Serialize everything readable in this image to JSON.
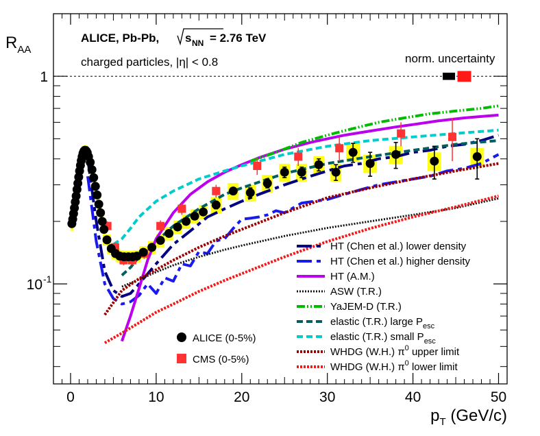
{
  "chart_data": {
    "type": "scatter",
    "title": "",
    "xlabel": "p_T (GeV/c)",
    "ylabel": "R_AA",
    "xlim": [
      -2,
      51
    ],
    "ylim": [
      0.033,
      2.0
    ],
    "yscale": "log",
    "x_ticks": [
      0,
      10,
      20,
      30,
      40,
      50
    ],
    "y_ticks": [
      {
        "value": 0.1,
        "label": "10",
        "exp": "-1"
      },
      {
        "value": 1.0,
        "label": "1",
        "exp": ""
      }
    ],
    "annotations": {
      "line1_prefix": "ALICE, Pb-Pb,",
      "sqrt": "s",
      "sqrt_sub": "NN",
      "line1_suffix": "= 2.76 TeV",
      "line2": "charged particles, |η| < 0.8",
      "norm": "norm. uncertainty"
    },
    "reference_line": 1.0,
    "norm_uncertainty": [
      {
        "name": "ALICE",
        "x": 44.2,
        "low": 0.96,
        "high": 1.04,
        "color": "#000000"
      },
      {
        "name": "CMS",
        "x": 46.0,
        "low": 0.94,
        "high": 1.06,
        "color": "#ff1a1a"
      }
    ],
    "series": [
      {
        "name": "ALICE (0-5%)",
        "marker": "circle",
        "color": "#000000",
        "x": [
          0.15,
          0.25,
          0.35,
          0.45,
          0.55,
          0.65,
          0.75,
          0.85,
          0.95,
          1.05,
          1.15,
          1.25,
          1.35,
          1.45,
          1.55,
          1.65,
          1.75,
          1.85,
          1.95,
          2.1,
          2.3,
          2.5,
          2.7,
          2.9,
          3.1,
          3.3,
          3.5,
          3.7,
          3.9,
          4.25,
          4.75,
          5.25,
          5.75,
          6.25,
          6.75,
          7.25,
          7.75,
          8.5,
          9.5,
          10.5,
          11.5,
          12.5,
          13.5,
          14.5,
          15.5,
          17.0,
          19.0,
          21.0,
          23.0,
          25.0,
          27.0,
          29.0,
          31.0,
          33.0,
          35.0,
          38.0,
          42.5,
          47.5
        ],
        "y": [
          0.195,
          0.205,
          0.218,
          0.232,
          0.248,
          0.265,
          0.285,
          0.305,
          0.327,
          0.35,
          0.372,
          0.392,
          0.41,
          0.425,
          0.435,
          0.44,
          0.44,
          0.436,
          0.428,
          0.41,
          0.385,
          0.355,
          0.325,
          0.295,
          0.268,
          0.242,
          0.22,
          0.2,
          0.183,
          0.163,
          0.148,
          0.14,
          0.136,
          0.135,
          0.135,
          0.135,
          0.136,
          0.142,
          0.15,
          0.162,
          0.175,
          0.188,
          0.2,
          0.212,
          0.222,
          0.24,
          0.28,
          0.275,
          0.305,
          0.345,
          0.345,
          0.375,
          0.345,
          0.43,
          0.38,
          0.42,
          0.39,
          0.41
        ],
        "stat_err": [
          0,
          0,
          0,
          0,
          0,
          0,
          0,
          0,
          0,
          0,
          0,
          0,
          0,
          0,
          0,
          0,
          0,
          0,
          0,
          0,
          0,
          0,
          0,
          0,
          0,
          0,
          0,
          0,
          0,
          0,
          0,
          0,
          0,
          0,
          0,
          0,
          0,
          0,
          0,
          0,
          0,
          0,
          0,
          0,
          0,
          0.01,
          0.01,
          0.015,
          0.015,
          0.02,
          0.02,
          0.025,
          0.03,
          0.045,
          0.05,
          0.06,
          0.07,
          0.09
        ],
        "sys_err": [
          0.015,
          0.015,
          0.015,
          0.016,
          0.017,
          0.018,
          0.019,
          0.02,
          0.021,
          0.022,
          0.023,
          0.024,
          0.025,
          0.025,
          0.025,
          0.025,
          0.025,
          0.025,
          0.025,
          0.024,
          0.022,
          0.02,
          0.018,
          0.016,
          0.015,
          0.014,
          0.013,
          0.012,
          0.011,
          0.01,
          0.009,
          0.009,
          0.009,
          0.009,
          0.009,
          0.009,
          0.009,
          0.01,
          0.011,
          0.012,
          0.013,
          0.014,
          0.016,
          0.017,
          0.018,
          0.022,
          0.026,
          0.026,
          0.03,
          0.034,
          0.034,
          0.037,
          0.034,
          0.043,
          0.038,
          0.042,
          0.04,
          0.042
        ]
      },
      {
        "name": "CMS (0-5%)",
        "marker": "square",
        "color": "#ff3333",
        "x": [
          4.3,
          5.2,
          6.2,
          7.2,
          8.6,
          10.5,
          13.0,
          17.0,
          21.8,
          26.6,
          31.4,
          38.6,
          44.6
        ],
        "y": [
          0.19,
          0.15,
          0.13,
          0.13,
          0.14,
          0.19,
          0.23,
          0.28,
          0.37,
          0.41,
          0.45,
          0.53,
          0.51
        ],
        "err": [
          0.01,
          0.008,
          0.007,
          0.007,
          0.008,
          0.012,
          0.015,
          0.02,
          0.035,
          0.04,
          0.06,
          0.07,
          0.12
        ]
      }
    ],
    "models": [
      {
        "name": "HT (Chen et al.) lower density",
        "color": "#000080",
        "dash": "22 7 6 7",
        "width": 4,
        "x": [
          2.0,
          3,
          4,
          5,
          6,
          7,
          8,
          10,
          12,
          14,
          16,
          18,
          20,
          22,
          25,
          28,
          30,
          32,
          34,
          36,
          38,
          40,
          42,
          44,
          46,
          48,
          50
        ],
        "y": [
          0.4,
          0.2,
          0.115,
          0.093,
          0.087,
          0.09,
          0.1,
          0.125,
          0.155,
          0.18,
          0.21,
          0.23,
          0.25,
          0.27,
          0.3,
          0.33,
          0.35,
          0.37,
          0.38,
          0.4,
          0.41,
          0.43,
          0.44,
          0.46,
          0.47,
          0.49,
          0.52
        ]
      },
      {
        "name": "HT (Chen et al.) higher density",
        "color": "#1a1aee",
        "dash": "22 7 6 7",
        "width": 4,
        "x": [
          2.0,
          3,
          4,
          5,
          6,
          7,
          8,
          9,
          10,
          11,
          12,
          13,
          14,
          15,
          16,
          17,
          18,
          19,
          20,
          21,
          22,
          23,
          24,
          25,
          27,
          30,
          32,
          34,
          36,
          38,
          40,
          42,
          44,
          46,
          48,
          50
        ],
        "y": [
          0.33,
          0.16,
          0.1,
          0.085,
          0.08,
          0.082,
          0.088,
          0.1,
          0.09,
          0.107,
          0.103,
          0.125,
          0.122,
          0.143,
          0.14,
          0.161,
          0.165,
          0.185,
          0.205,
          0.207,
          0.21,
          0.215,
          0.225,
          0.22,
          0.245,
          0.255,
          0.27,
          0.285,
          0.3,
          0.31,
          0.32,
          0.33,
          0.35,
          0.36,
          0.38,
          0.42
        ]
      },
      {
        "name": "HT (A.M.)",
        "color": "#bb00ee",
        "dash": "",
        "width": 4,
        "x": [
          6,
          7,
          8,
          9,
          10,
          12,
          14,
          16,
          18,
          20,
          22,
          25,
          28,
          30,
          32,
          35,
          38,
          40,
          43,
          46,
          48,
          50
        ],
        "y": [
          0.053,
          0.07,
          0.095,
          0.13,
          0.165,
          0.22,
          0.27,
          0.31,
          0.345,
          0.375,
          0.405,
          0.445,
          0.48,
          0.5,
          0.52,
          0.545,
          0.57,
          0.585,
          0.61,
          0.63,
          0.64,
          0.65
        ]
      },
      {
        "name": "ASW (T.R.)",
        "color": "#111111",
        "dash": "2 2",
        "width": 3,
        "x": [
          6,
          8,
          10,
          12,
          15,
          18,
          20,
          25,
          30,
          35,
          40,
          45,
          50
        ],
        "y": [
          0.097,
          0.105,
          0.114,
          0.123,
          0.135,
          0.146,
          0.153,
          0.17,
          0.186,
          0.2,
          0.215,
          0.232,
          0.258
        ]
      },
      {
        "name": "YaJEM-D (T.R.)",
        "color": "#00bb00",
        "dash": "12 3 2 3 2 3",
        "width": 4,
        "x": [
          21,
          24,
          27,
          30,
          33,
          36,
          39,
          42,
          45,
          48,
          50
        ],
        "y": [
          0.39,
          0.43,
          0.48,
          0.52,
          0.56,
          0.6,
          0.63,
          0.66,
          0.68,
          0.7,
          0.72
        ]
      },
      {
        "name": "elastic (T.R.) large P_esc",
        "color": "#006060",
        "dash": "9 5",
        "width": 4,
        "x": [
          6,
          7,
          8,
          10,
          12,
          15,
          18,
          20,
          25,
          30,
          35,
          40,
          45,
          50
        ],
        "y": [
          0.11,
          0.12,
          0.135,
          0.16,
          0.19,
          0.23,
          0.27,
          0.29,
          0.34,
          0.38,
          0.41,
          0.44,
          0.47,
          0.49
        ]
      },
      {
        "name": "elastic (T.R.) small P_esc",
        "color": "#00cccc",
        "dash": "9 5",
        "width": 4,
        "x": [
          5,
          6,
          7,
          8,
          10,
          12,
          15,
          18,
          20,
          25,
          30,
          35,
          40,
          45,
          50
        ],
        "y": [
          0.155,
          0.165,
          0.185,
          0.21,
          0.25,
          0.28,
          0.32,
          0.35,
          0.37,
          0.42,
          0.46,
          0.49,
          0.51,
          0.53,
          0.55
        ]
      },
      {
        "name": "WHDG (W.H.) π⁰ upper limit",
        "color": "#990000",
        "dash": "3 2",
        "width": 4,
        "x": [
          4,
          6,
          8,
          10,
          12,
          15,
          18,
          20,
          25,
          30,
          35,
          40,
          45,
          50
        ],
        "y": [
          0.071,
          0.093,
          0.106,
          0.117,
          0.13,
          0.15,
          0.17,
          0.183,
          0.22,
          0.26,
          0.29,
          0.32,
          0.35,
          0.38
        ]
      },
      {
        "name": "WHDG (W.H.) π⁰ lower limit",
        "color": "#ee1a1a",
        "dash": "3 2",
        "width": 4,
        "x": [
          4,
          6,
          8,
          10,
          12,
          15,
          18,
          20,
          25,
          30,
          35,
          40,
          45,
          50
        ],
        "y": [
          0.052,
          0.058,
          0.065,
          0.073,
          0.08,
          0.092,
          0.104,
          0.112,
          0.135,
          0.16,
          0.185,
          0.21,
          0.235,
          0.265
        ]
      }
    ],
    "legend_left": [
      {
        "label": "ALICE (0-5%)",
        "marker": "circle",
        "color": "#000000"
      },
      {
        "label": "CMS (0-5%)",
        "marker": "square",
        "color": "#ff3333"
      }
    ],
    "legend_right": [
      {
        "label": "HT (Chen et al.) lower density"
      },
      {
        "label": "HT (Chen et al.) higher density"
      },
      {
        "label": "HT (A.M.)"
      },
      {
        "label": "ASW (T.R.)"
      },
      {
        "label": "YaJEM-D (T.R.)"
      },
      {
        "label": "elastic (T.R.) large P",
        "sub": "esc"
      },
      {
        "label": "elastic (T.R.) small P",
        "sub": "esc"
      },
      {
        "label": "WHDG (W.H.) π",
        "sup": "0",
        "after": " upper limit"
      },
      {
        "label": "WHDG (W.H.) π",
        "sup": "0",
        "after": " lower limit"
      }
    ]
  }
}
